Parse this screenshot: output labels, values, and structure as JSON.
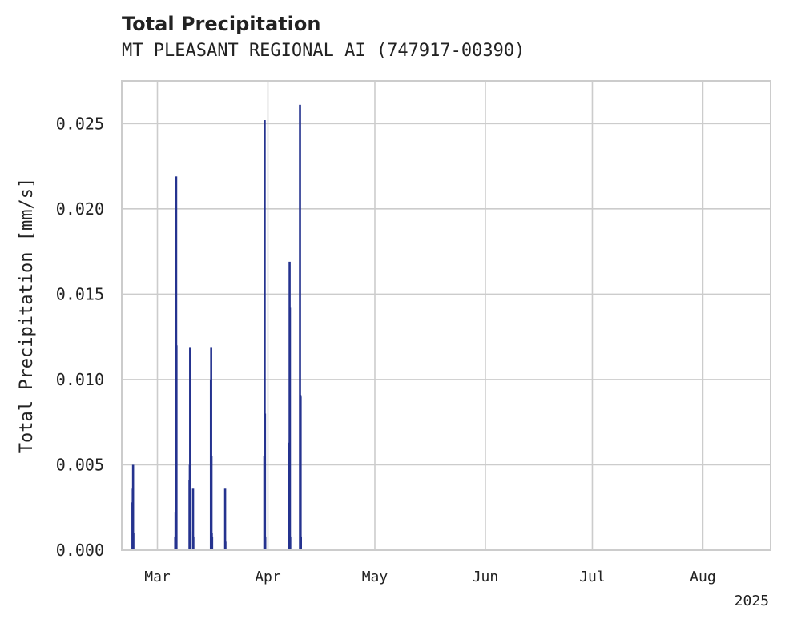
{
  "chart_data": {
    "type": "bar",
    "title": "Total Precipitation",
    "subtitle": "MT PLEASANT REGIONAL AI (747917-00390)",
    "ylabel": "Total Precipitation [mm/s]",
    "xlabel": "",
    "x_offset_label": "2025",
    "ylim": [
      0,
      0.0275
    ],
    "xlim": [
      "2025-02-19",
      "2025-08-20"
    ],
    "yticks": [
      "0.000",
      "0.005",
      "0.010",
      "0.015",
      "0.020",
      "0.025"
    ],
    "ytick_values": [
      0,
      0.005,
      0.01,
      0.015,
      0.02,
      0.025
    ],
    "xticks": [
      {
        "label": "Mar",
        "date": "2025-03-01"
      },
      {
        "label": "Apr",
        "date": "2025-04-01"
      },
      {
        "label": "May",
        "date": "2025-05-01"
      },
      {
        "label": "Jun",
        "date": "2025-06-01"
      },
      {
        "label": "Jul",
        "date": "2025-07-01"
      },
      {
        "label": "Aug",
        "date": "2025-08-01"
      }
    ],
    "grid": true,
    "bar_color": "#25338f",
    "x": [
      "2025-02-22",
      "2025-02-22",
      "2025-02-22",
      "2025-02-22",
      "2025-03-06",
      "2025-03-06",
      "2025-03-06",
      "2025-03-06",
      "2025-03-06",
      "2025-03-10",
      "2025-03-10",
      "2025-03-10",
      "2025-03-10",
      "2025-03-11",
      "2025-03-11",
      "2025-03-16",
      "2025-03-16",
      "2025-03-16",
      "2025-03-16",
      "2025-03-16",
      "2025-03-20",
      "2025-03-20",
      "2025-03-31",
      "2025-03-31",
      "2025-03-31",
      "2025-03-31",
      "2025-04-07",
      "2025-04-07",
      "2025-04-07",
      "2025-04-07",
      "2025-04-10",
      "2025-04-10",
      "2025-04-10",
      "2025-04-10"
    ],
    "values": [
      0.0028,
      0.0036,
      0.005,
      0.001,
      0.0008,
      0.0022,
      0.01,
      0.0219,
      0.012,
      0.0041,
      0.005,
      0.0119,
      0.0011,
      0.0036,
      0.0008,
      0.01,
      0.0119,
      0.0055,
      0.001,
      0.0008,
      0.0036,
      0.0005,
      0.0055,
      0.0252,
      0.008,
      0.0008,
      0.0063,
      0.0169,
      0.0142,
      0.0008,
      0.0261,
      0.0091,
      0.009,
      0.0008
    ]
  }
}
